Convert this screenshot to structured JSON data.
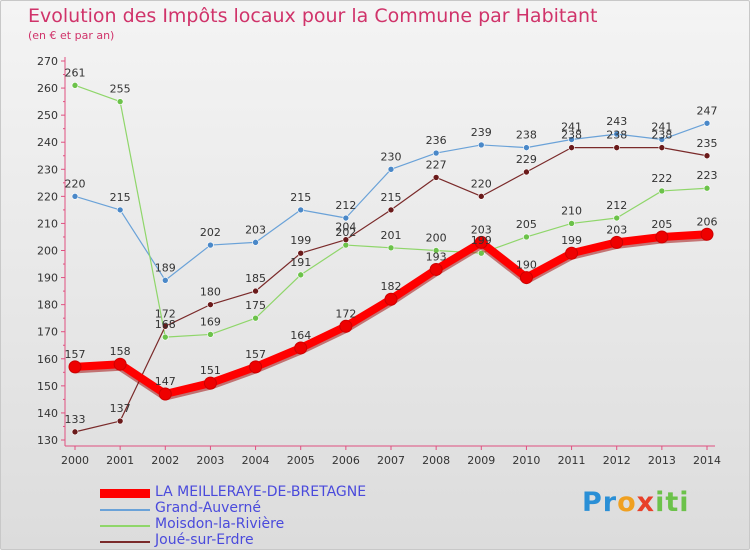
{
  "chart_data": {
    "type": "line",
    "title": "Evolution des Impôts locaux pour la Commune par Habitant",
    "subtitle": "(en € et par an)",
    "xlabel": "",
    "ylabel": "",
    "ylim": [
      130,
      270
    ],
    "y_ticks": [
      130,
      140,
      150,
      160,
      170,
      180,
      190,
      200,
      210,
      220,
      230,
      240,
      250,
      260,
      270
    ],
    "categories": [
      "2000",
      "2001",
      "2002",
      "2003",
      "2004",
      "2005",
      "2006",
      "2007",
      "2008",
      "2009",
      "2010",
      "2011",
      "2012",
      "2013",
      "2014"
    ],
    "series": [
      {
        "name": "LA MEILLERAYE-DE-BRETAGNE",
        "color": "#ff0000",
        "marker": "#ee0000",
        "values": [
          157,
          158,
          147,
          151,
          157,
          164,
          172,
          182,
          193,
          203,
          190,
          199,
          203,
          205,
          206
        ]
      },
      {
        "name": "Grand-Auverné",
        "color": "#6aa2d8",
        "marker": "#4a88c8",
        "values": [
          220,
          215,
          189,
          202,
          203,
          215,
          212,
          230,
          236,
          239,
          238,
          241,
          243,
          241,
          247
        ]
      },
      {
        "name": "Moisdon-la-Rivière",
        "color": "#8fd66a",
        "marker": "#6cc24a",
        "values": [
          261,
          255,
          168,
          169,
          175,
          191,
          202,
          201,
          200,
          199,
          205,
          210,
          212,
          222,
          223
        ]
      },
      {
        "name": "Joué-sur-Erdre",
        "color": "#7a2a2a",
        "marker": "#6a1a1a",
        "values": [
          133,
          137,
          172,
          180,
          185,
          199,
          204,
          215,
          227,
          220,
          229,
          238,
          238,
          238,
          235
        ]
      }
    ],
    "data_labels": [
      [
        "157",
        "158",
        "147",
        "151",
        "157",
        "164",
        "172",
        "182",
        "193",
        "203",
        "190",
        "199",
        "203",
        "205",
        "206"
      ],
      [
        "220",
        "215",
        "189",
        "202",
        "203",
        "215",
        "212",
        "230",
        "236",
        "239",
        "238",
        "241",
        "243",
        "241",
        "247"
      ],
      [
        "261",
        "255",
        "168",
        "169",
        "175",
        "191",
        "202",
        "201",
        "200",
        "199",
        "205",
        "210",
        "212",
        "222",
        "223"
      ],
      [
        "133",
        "137",
        "172",
        "180",
        "185",
        "199",
        "204",
        "215",
        "227",
        "220",
        "229",
        "238",
        "238",
        "238",
        "235"
      ]
    ],
    "legend_position": "bottom-left",
    "grid": false
  },
  "logo": {
    "p1": "Pr",
    "p2": "o",
    "p3": "x",
    "p4": "iti"
  }
}
